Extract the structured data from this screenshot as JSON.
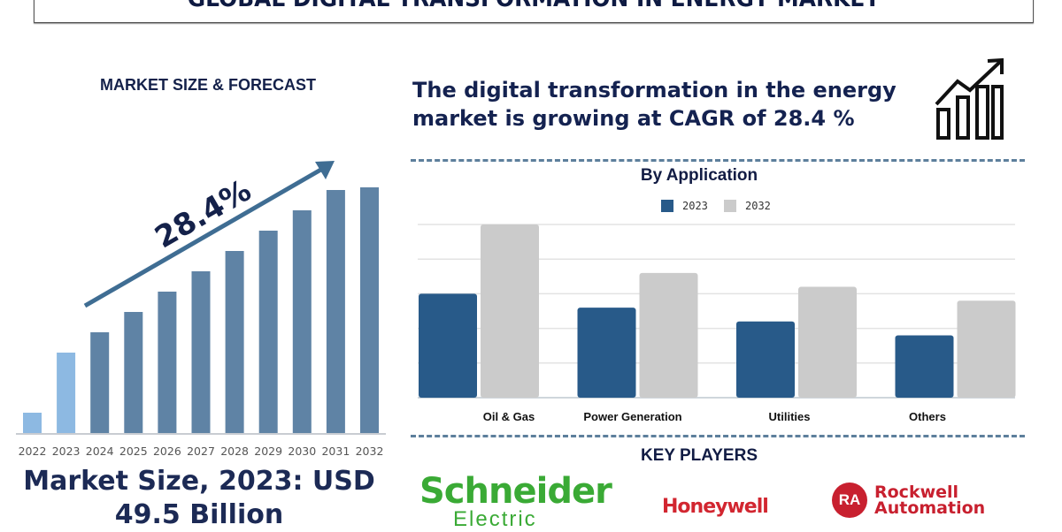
{
  "title": "GLOBAL DIGITAL TRANSFORMATION IN ENERGY MARKET",
  "left_panel": {
    "subtitle": "MARKET SIZE & FORECAST",
    "cagr_label": "28.4%",
    "market_size_line1": "Market Size, 2023: USD",
    "market_size_line2": "49.5 Billion"
  },
  "headline": "The digital transformation in the energy market is growing at CAGR of 28.4 %",
  "headline_icon": "bar-chart-growth-arrow-icon",
  "key_players": {
    "title": "KEY PLAYERS",
    "logos": [
      "Schneider Electric",
      "Honeywell",
      "Rockwell Automation"
    ]
  },
  "chart_data": [
    {
      "type": "bar",
      "categories": [
        "2022",
        "2023",
        "2024",
        "2025",
        "2026",
        "2027",
        "2028",
        "2029",
        "2030",
        "2031",
        "2032"
      ],
      "values": [
        24,
        92,
        115,
        138,
        161,
        184,
        207,
        230,
        253,
        276,
        279
      ],
      "highlight_colors": {
        "historic": "#8db9e2",
        "forecast": "#5f83a5"
      },
      "grid": false,
      "annotation": "28.4%"
    },
    {
      "type": "bar",
      "title": "By Application",
      "categories": [
        "Oil & Gas",
        "Power Generation",
        "Utilities",
        "Others"
      ],
      "series": [
        {
          "name": "2023",
          "values": [
            3.0,
            2.6,
            2.2,
            1.8
          ],
          "color": "#285a89"
        },
        {
          "name": "2032",
          "values": [
            5.0,
            3.6,
            3.2,
            2.8
          ],
          "color": "#cbcbcb"
        }
      ],
      "ylim": [
        0,
        5
      ],
      "grid": true,
      "legend": "top"
    }
  ]
}
